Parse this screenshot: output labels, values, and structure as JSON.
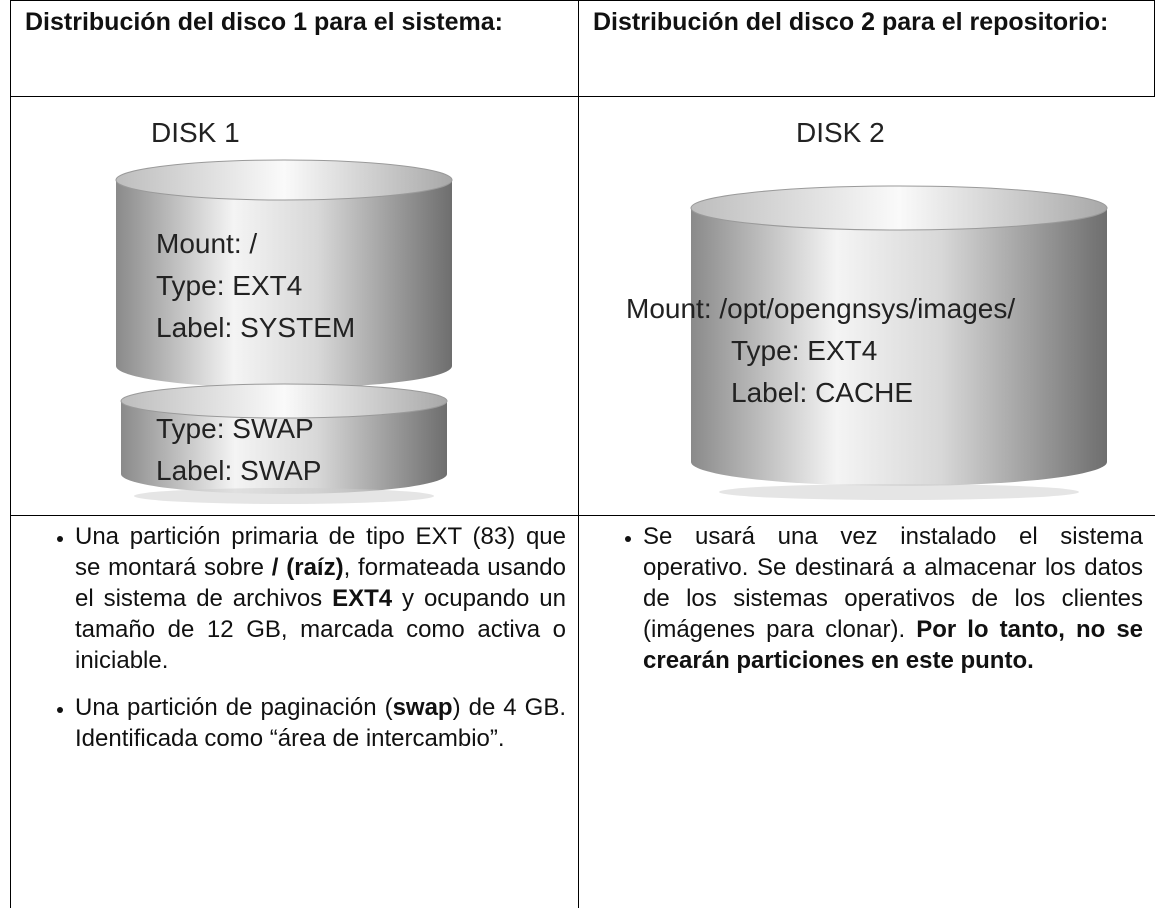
{
  "header": {
    "cells": [
      "Distribución del disco 1 para el sistema:",
      "Distribución del disco 2 para el repositorio:"
    ]
  },
  "disks": [
    {
      "title": "DISK 1",
      "partitions": [
        [
          "Mount: /",
          "Type: EXT4",
          "Label: SYSTEM"
        ],
        [
          "Type: SWAP",
          "Label: SWAP"
        ]
      ]
    },
    {
      "title": "DISK 2",
      "partitions": [
        [
          "Mount: /opt/opengnsys/images/",
          "Type: EXT4",
          "Label: CACHE"
        ]
      ]
    }
  ],
  "notes": [
    [
      {
        "runs": [
          {
            "text": "Una partición primaria de tipo EXT (83) que se montará sobre ",
            "bold": false
          },
          {
            "text": "/ (raíz)",
            "bold": true
          },
          {
            "text": ", formateada usando el sistema de archivos ",
            "bold": false
          },
          {
            "text": "EXT4",
            "bold": true
          },
          {
            "text": " y ocupando un tamaño de 12 GB, marcada como activa o iniciable.",
            "bold": false
          }
        ]
      },
      {
        "runs": [
          {
            "text": "Una partición de paginación (",
            "bold": false
          },
          {
            "text": "swap",
            "bold": true
          },
          {
            "text": ") de 4 GB.  Identificada como “área de intercambio”.",
            "bold": false
          }
        ]
      }
    ],
    [
      {
        "runs": [
          {
            "text": "Se usará una vez instalado el sistema operativo. Se destinará a almacenar los datos de los sistemas operativos de los clientes (imágenes para clonar). ",
            "bold": false
          },
          {
            "text": "Por lo tanto, no se crearán particiones en este punto.",
            "bold": true
          }
        ]
      }
    ]
  ]
}
